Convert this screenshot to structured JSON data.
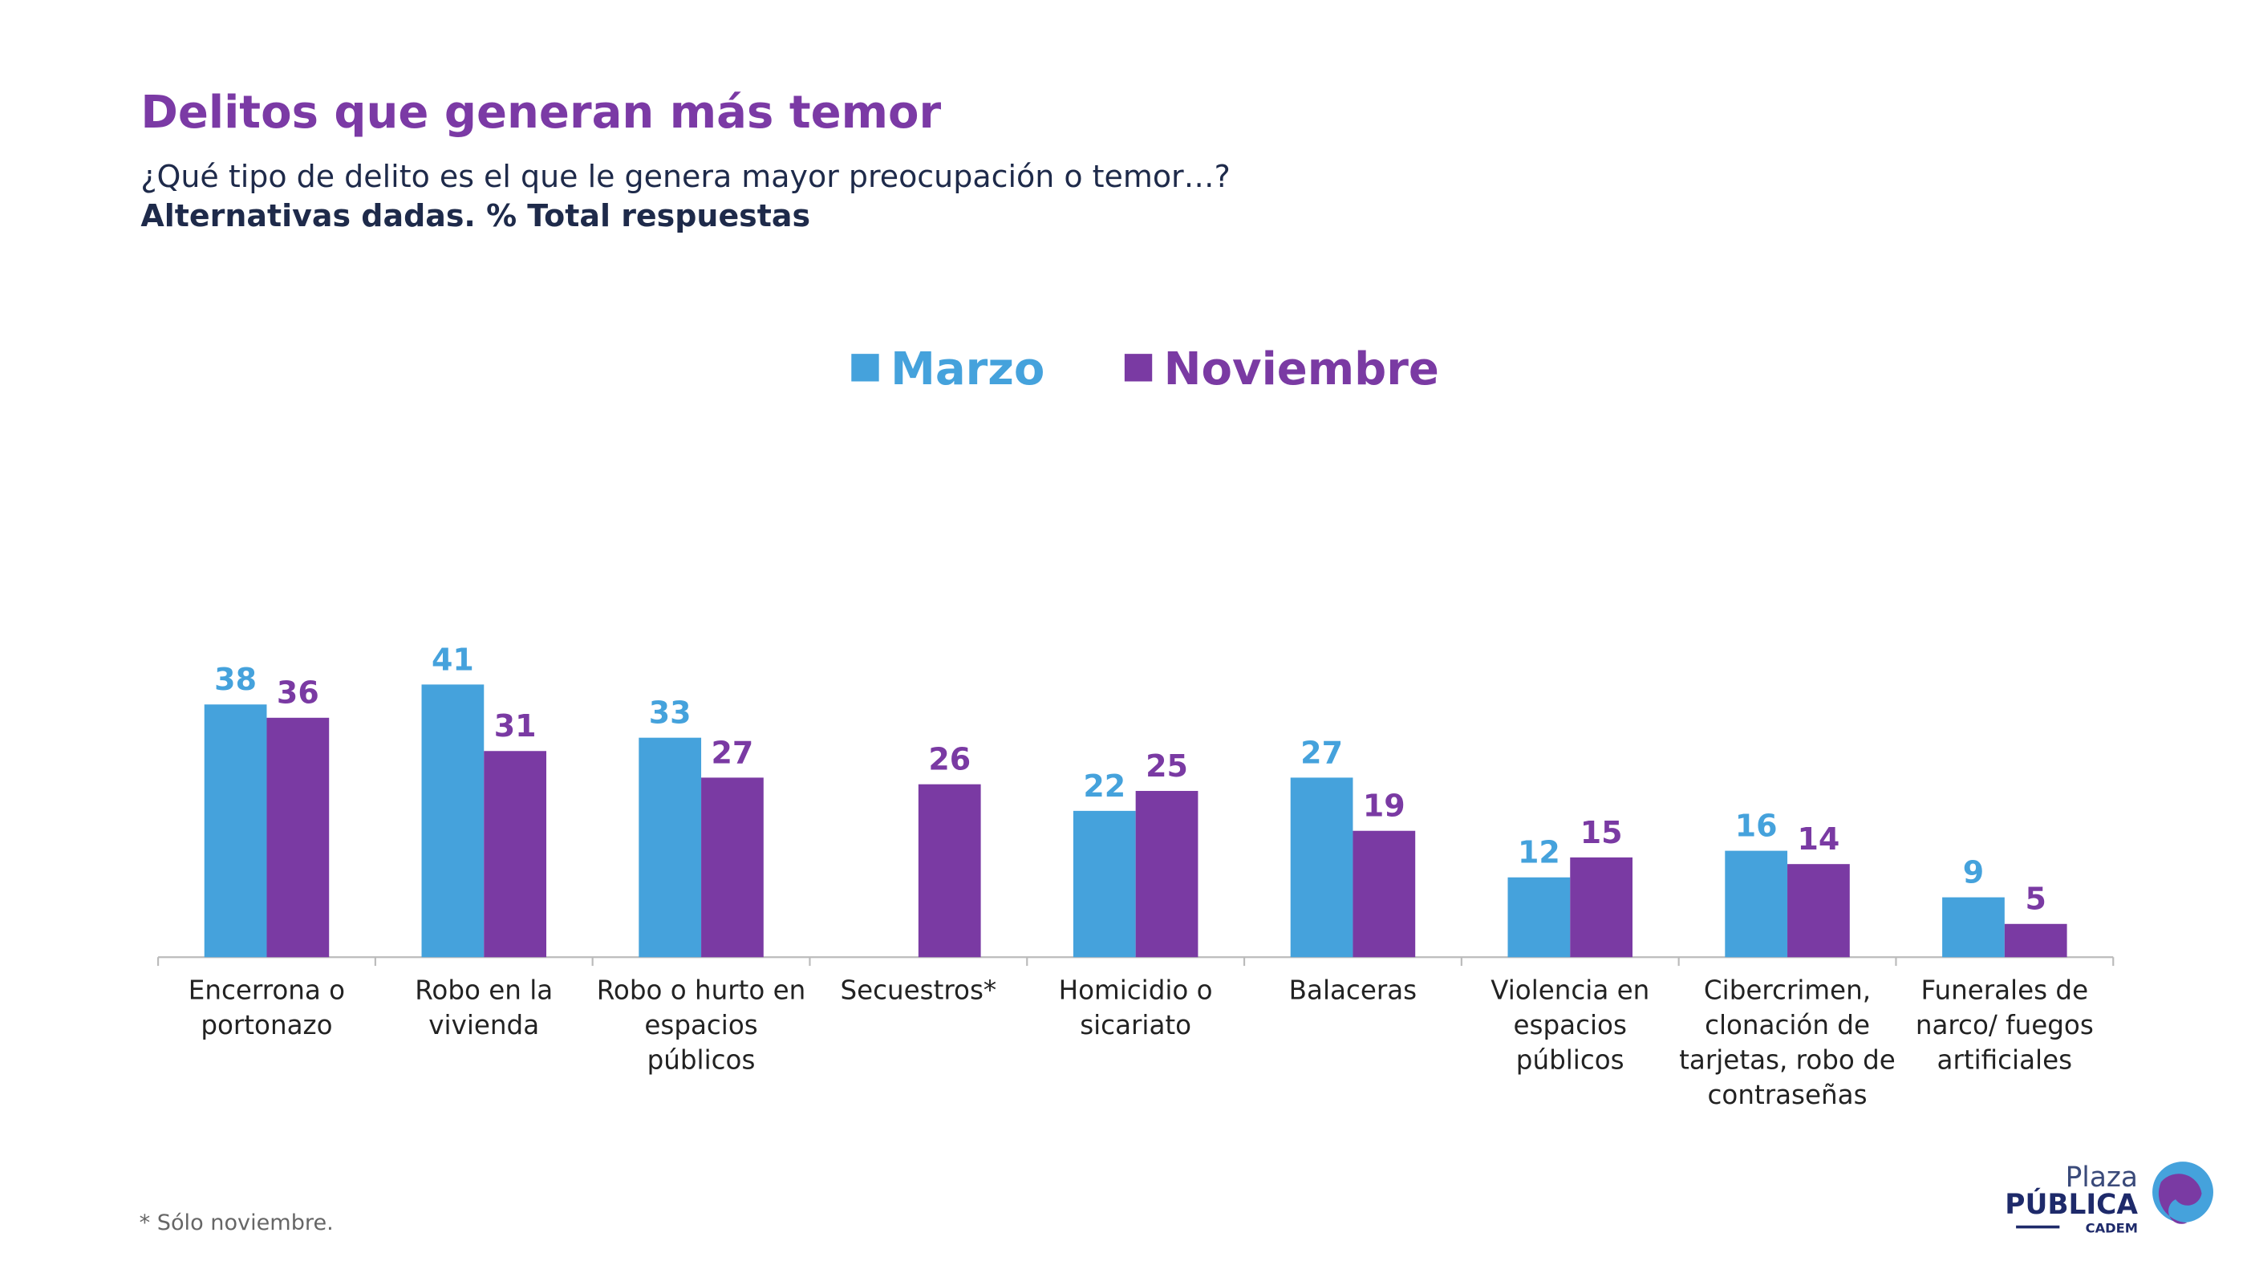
{
  "chart_data": {
    "type": "bar",
    "title": "Delitos que generan más temor",
    "subtitle": "¿Qué tipo de delito es el que le genera mayor preocupación o temor…?",
    "subtitle2": "Alternativas dadas. % Total respuestas",
    "categories": [
      "Encerrona o portonazo",
      "Robo en la vivienda",
      "Robo o hurto en espacios públicos",
      "Secuestros*",
      "Homicidio o sicariato",
      "Balaceras",
      "Violencia en espacios públicos",
      "Cibercrimen, clonación de tarjetas, robo de contraseñas",
      "Funerales de narco/ fuegos artificiales"
    ],
    "series": [
      {
        "name": "Marzo",
        "color": "#45a2dc",
        "values": [
          38,
          41,
          33,
          null,
          22,
          27,
          12,
          16,
          9
        ]
      },
      {
        "name": "Noviembre",
        "color": "#7a3aa3",
        "values": [
          36,
          31,
          27,
          26,
          25,
          19,
          15,
          14,
          5
        ]
      }
    ],
    "legend": "top",
    "footnote": "* Sólo noviembre."
  },
  "logo": {
    "line1": "Plaza",
    "line2": "PÚBLICA",
    "line3": "CADEM"
  }
}
